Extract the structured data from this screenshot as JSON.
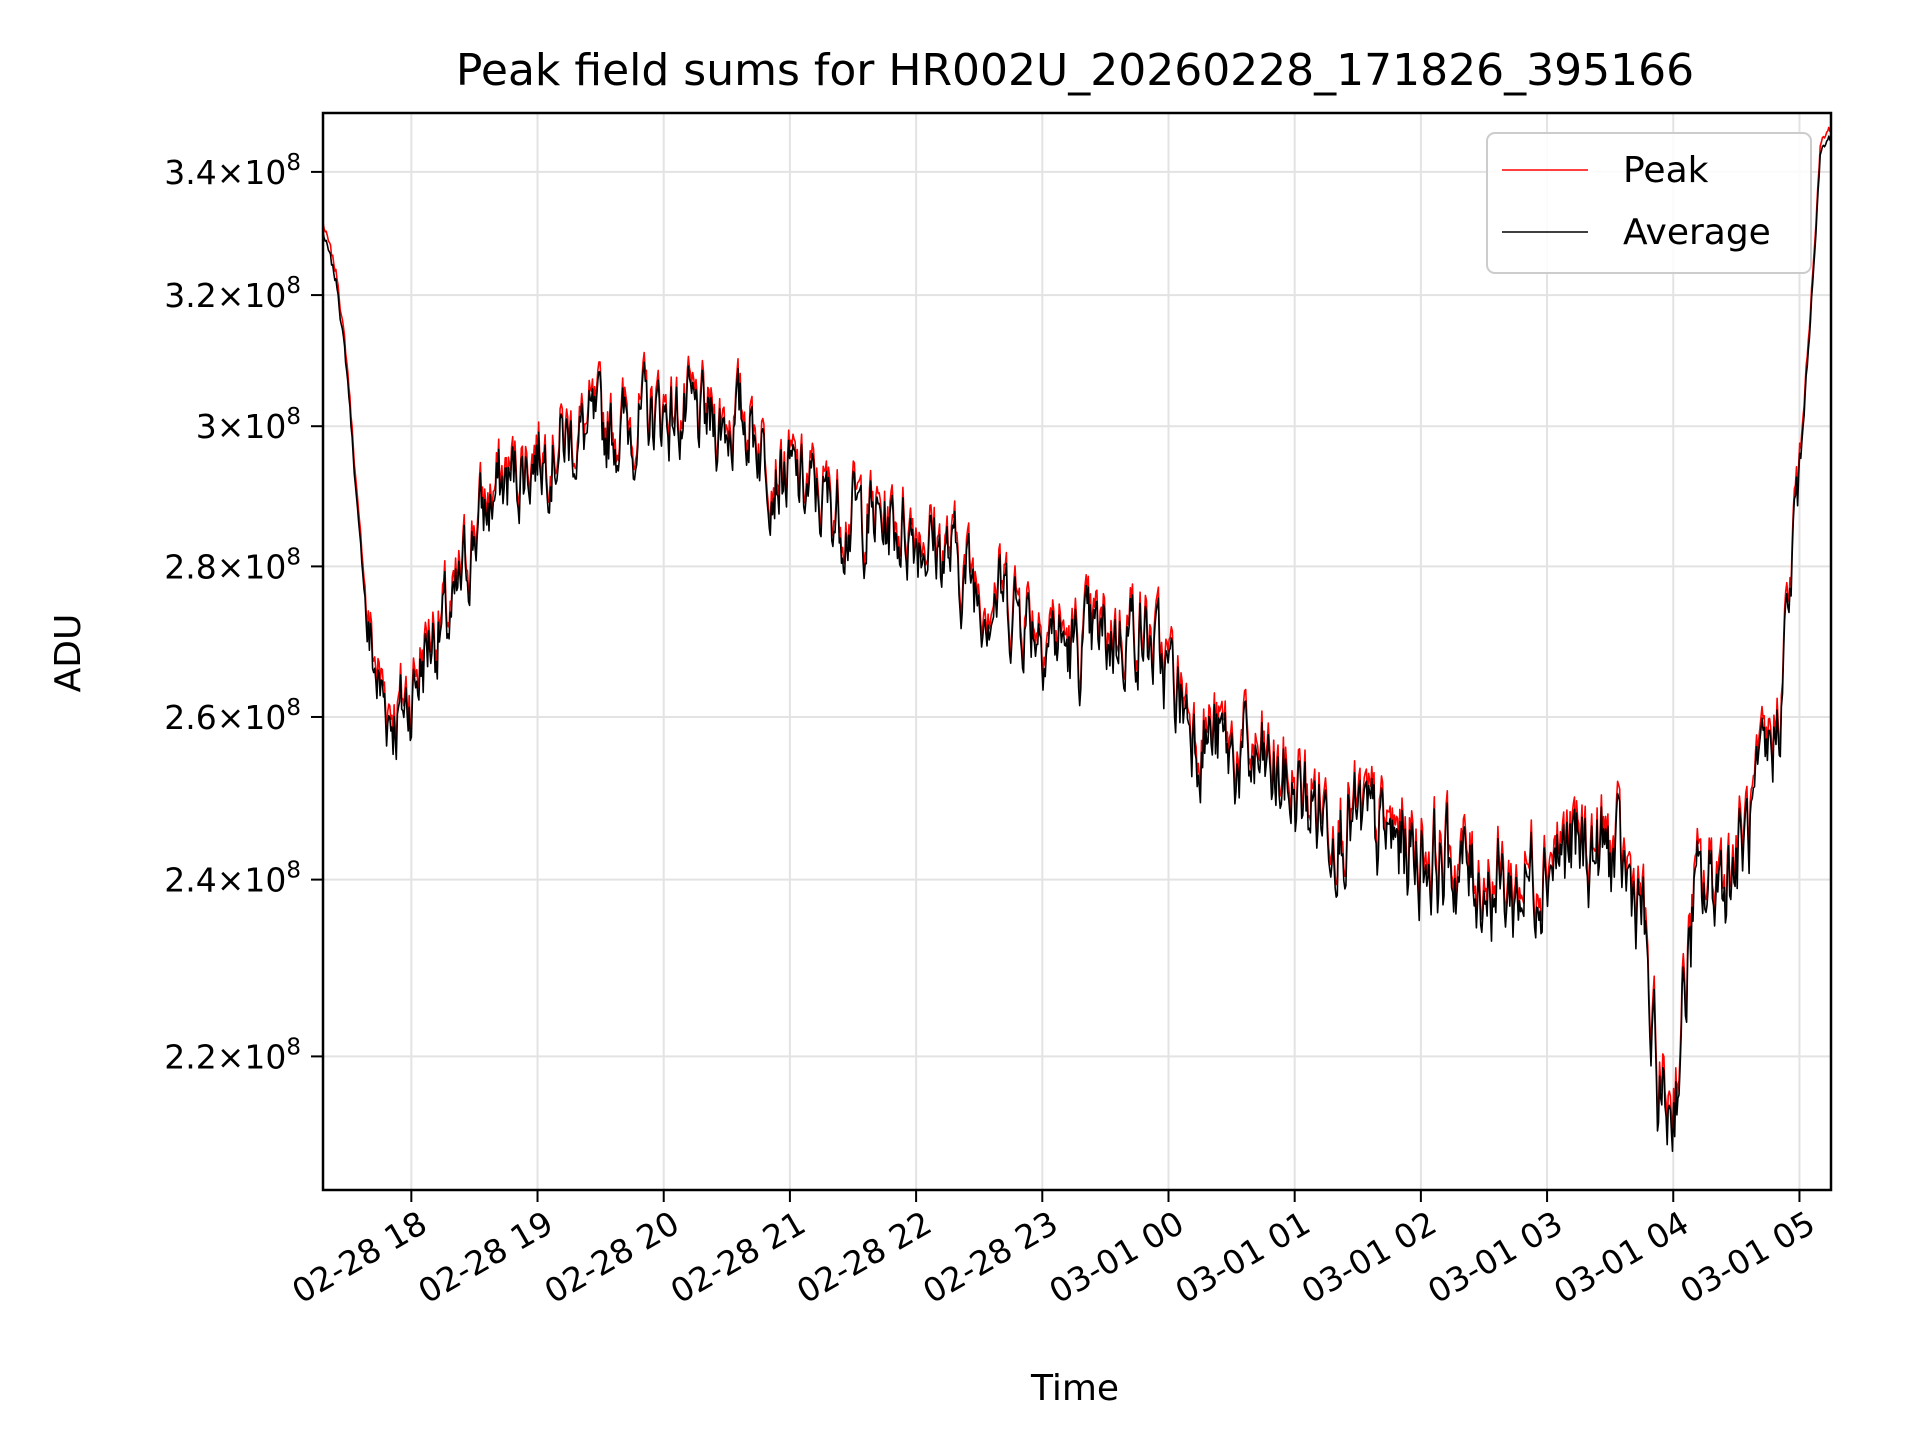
{
  "chart_data": {
    "type": "line",
    "title": "Peak field sums for HR002U_20260228_171826_395166",
    "xlabel": "Time",
    "ylabel": "ADU",
    "yscale": "log",
    "grid": true,
    "legend_position": "upper right",
    "xlim": [
      "2026-02-28 17:18",
      "2026-03-01 05:15"
    ],
    "ylim": [
      206000000,
      350000000
    ],
    "x_ticks": [
      "2026-02-28 18:00",
      "2026-02-28 19:00",
      "2026-02-28 20:00",
      "2026-02-28 21:00",
      "2026-02-28 22:00",
      "2026-02-28 23:00",
      "2026-03-01 00:00",
      "2026-03-01 01:00",
      "2026-03-01 02:00",
      "2026-03-01 03:00",
      "2026-03-01 04:00",
      "2026-03-01 05:00"
    ],
    "x_tick_labels": [
      "02-28 18",
      "02-28 19",
      "02-28 20",
      "02-28 21",
      "02-28 22",
      "02-28 23",
      "03-01 00",
      "03-01 01",
      "03-01 02",
      "03-01 03",
      "03-01 04",
      "03-01 05"
    ],
    "y_ticks": [
      220000000,
      240000000,
      260000000,
      280000000,
      300000000,
      320000000,
      340000000
    ],
    "y_tick_mantissas": [
      "2.2",
      "2.4",
      "2.6",
      "2.8",
      "3",
      "3.2",
      "3.4"
    ],
    "y_tick_base": "10",
    "y_tick_exponent": "8",
    "series": [
      {
        "name": "Peak",
        "color": "#ff0000",
        "offset": 1500000
      },
      {
        "name": "Average",
        "color": "#000000",
        "offset": 0
      }
    ],
    "trend_x": [
      "2026-02-28 17:18",
      "2026-02-28 17:25",
      "2026-02-28 17:30",
      "2026-02-28 17:35",
      "2026-02-28 17:40",
      "2026-02-28 17:45",
      "2026-02-28 17:50",
      "2026-02-28 17:55",
      "2026-02-28 18:00",
      "2026-02-28 18:05",
      "2026-02-28 18:10",
      "2026-02-28 18:20",
      "2026-02-28 18:30",
      "2026-02-28 18:40",
      "2026-02-28 18:50",
      "2026-02-28 19:00",
      "2026-02-28 19:15",
      "2026-02-28 19:30",
      "2026-02-28 19:45",
      "2026-02-28 20:00",
      "2026-02-28 20:20",
      "2026-02-28 20:40",
      "2026-02-28 20:50",
      "2026-02-28 21:00",
      "2026-02-28 21:20",
      "2026-02-28 21:40",
      "2026-02-28 22:00",
      "2026-02-28 22:20",
      "2026-02-28 22:30",
      "2026-02-28 22:40",
      "2026-02-28 23:00",
      "2026-02-28 23:15",
      "2026-02-28 23:30",
      "2026-02-28 23:45",
      "2026-03-01 00:00",
      "2026-03-01 00:15",
      "2026-03-01 00:30",
      "2026-03-01 00:45",
      "2026-03-01 01:00",
      "2026-03-01 01:30",
      "2026-03-01 02:00",
      "2026-03-01 02:30",
      "2026-03-01 02:45",
      "2026-03-01 03:00",
      "2026-03-01 03:30",
      "2026-03-01 03:45",
      "2026-03-01 03:50",
      "2026-03-01 03:55",
      "2026-03-01 04:00",
      "2026-03-01 04:05",
      "2026-03-01 04:10",
      "2026-03-01 04:15",
      "2026-03-01 04:20",
      "2026-03-01 04:30",
      "2026-03-01 04:40",
      "2026-03-01 04:50",
      "2026-03-01 04:55",
      "2026-03-01 05:00",
      "2026-03-01 05:05",
      "2026-03-01 05:10",
      "2026-03-01 05:15"
    ],
    "trend_y": [
      330000000,
      321000000,
      306000000,
      285000000,
      270000000,
      263000000,
      261000000,
      260000000,
      263000000,
      267000000,
      271000000,
      272000000,
      285000000,
      290000000,
      293000000,
      296000000,
      298000000,
      299000000,
      300000000,
      302000000,
      300000000,
      301000000,
      295000000,
      292000000,
      288000000,
      286000000,
      285000000,
      280000000,
      277000000,
      276000000,
      272000000,
      268000000,
      270000000,
      272000000,
      265000000,
      258000000,
      255000000,
      253000000,
      250000000,
      246000000,
      243000000,
      240000000,
      238000000,
      243000000,
      243000000,
      237000000,
      220000000,
      214000000,
      215000000,
      225000000,
      237000000,
      238000000,
      240000000,
      242000000,
      248000000,
      260000000,
      275000000,
      292000000,
      315000000,
      343000000,
      346000000
    ],
    "noise_amplitude": 10000000
  }
}
